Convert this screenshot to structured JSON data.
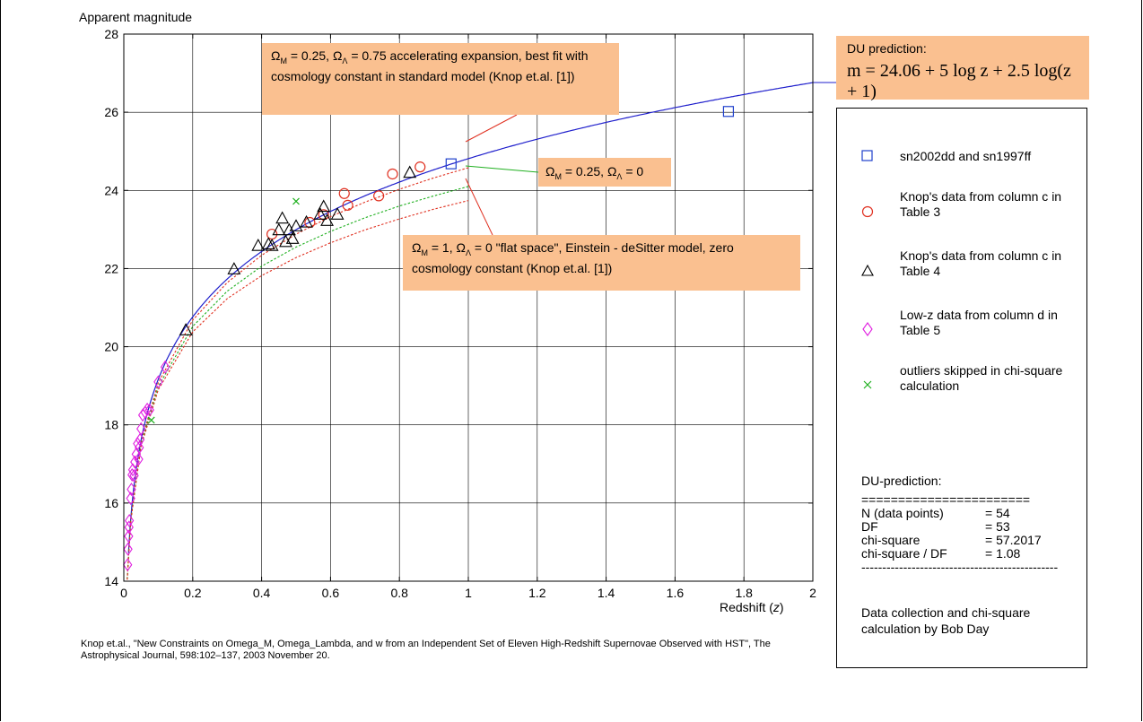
{
  "chart_data": {
    "type": "scatter",
    "xlabel_main": "Redshift",
    "xlabel_var": "z",
    "ylabel": "Apparent magnitude",
    "xlim": [
      0,
      2
    ],
    "ylim": [
      14,
      28
    ],
    "x_ticks": [
      "0",
      "0.2",
      "0.4",
      "0.6",
      "0.8",
      "1",
      "1.2",
      "1.4",
      "1.6",
      "1.8",
      "2"
    ],
    "y_ticks": [
      "14",
      "16",
      "18",
      "20",
      "22",
      "24",
      "26",
      "28"
    ],
    "grid": true,
    "curves": [
      {
        "name": "DU prediction",
        "color": "#1f1fcc",
        "style": "solid",
        "formula": "m = 24.06 + 5 log z + 2.5 log(z+1)"
      },
      {
        "name": "Omega_M = 0.25, Omega_Lambda = 0.75",
        "color": "#e03020",
        "style": "dotted",
        "x": [
          0.01,
          0.02,
          0.05,
          0.1,
          0.2,
          0.3,
          0.4,
          0.5,
          0.6,
          0.7,
          0.8,
          0.9,
          1.0
        ],
        "y": [
          14.05,
          15.55,
          17.55,
          19.08,
          20.68,
          21.64,
          22.34,
          22.88,
          23.33,
          23.7,
          24.03,
          24.32,
          24.58
        ]
      },
      {
        "name": "Omega_M = 0.25, Omega_Lambda = 0",
        "color": "#20b020",
        "style": "dotted",
        "x": [
          0.01,
          0.02,
          0.05,
          0.1,
          0.2,
          0.3,
          0.4,
          0.5,
          0.6,
          0.7,
          0.8,
          0.9,
          1.0
        ],
        "y": [
          14.05,
          15.54,
          17.5,
          18.98,
          20.52,
          21.42,
          22.06,
          22.55,
          22.95,
          23.3,
          23.6,
          23.86,
          24.1
        ]
      },
      {
        "name": "Omega_M = 1, Omega_Lambda = 0",
        "color": "#e03020",
        "style": "dotted",
        "x": [
          0.01,
          0.02,
          0.05,
          0.1,
          0.2,
          0.3,
          0.4,
          0.5,
          0.6,
          0.7,
          0.8,
          0.9,
          1.0
        ],
        "y": [
          14.04,
          15.53,
          17.45,
          18.9,
          20.38,
          21.23,
          21.82,
          22.28,
          22.66,
          22.99,
          23.27,
          23.52,
          23.74
        ]
      }
    ],
    "series": [
      {
        "name": "sn2002dd and sn1997ff",
        "marker": "square",
        "color": "#1f3fcc",
        "x": [
          0.95,
          1.755
        ],
        "y": [
          24.68,
          26.02
        ]
      },
      {
        "name": "Knop's data from column c in Table 3",
        "marker": "circle",
        "color": "#e03020",
        "x": [
          0.43,
          0.54,
          0.58,
          0.64,
          0.65,
          0.74,
          0.78,
          0.86
        ],
        "y": [
          22.88,
          23.18,
          23.38,
          23.92,
          23.62,
          23.86,
          24.42,
          24.6
        ]
      },
      {
        "name": "Knop's data from column c in Table 4",
        "marker": "triangle",
        "color": "#000000",
        "x": [
          0.18,
          0.32,
          0.39,
          0.42,
          0.43,
          0.45,
          0.46,
          0.47,
          0.48,
          0.49,
          0.5,
          0.53,
          0.57,
          0.58,
          0.59,
          0.62,
          0.83
        ],
        "y": [
          20.42,
          21.98,
          22.58,
          22.62,
          22.58,
          22.98,
          23.28,
          22.68,
          22.98,
          22.76,
          23.08,
          23.18,
          23.38,
          23.58,
          23.22,
          23.38,
          24.45
        ]
      },
      {
        "name": "Low-z data from column d in Table 5",
        "marker": "diamond",
        "color": "#e020e0",
        "x": [
          0.011,
          0.012,
          0.014,
          0.015,
          0.016,
          0.02,
          0.022,
          0.024,
          0.026,
          0.03,
          0.032,
          0.036,
          0.04,
          0.043,
          0.045,
          0.047,
          0.05,
          0.055,
          0.062,
          0.068,
          0.075,
          0.1,
          0.12
        ],
        "y": [
          14.42,
          14.82,
          15.15,
          15.38,
          15.55,
          16.12,
          16.35,
          16.72,
          16.85,
          16.7,
          17.05,
          17.25,
          17.52,
          17.12,
          17.42,
          17.62,
          17.9,
          18.25,
          18.32,
          18.4,
          18.38,
          19.1,
          19.48
        ]
      },
      {
        "name": "outliers skipped in chi-square calculation",
        "marker": "x",
        "color": "#20b020",
        "x": [
          0.08,
          0.5
        ],
        "y": [
          18.12,
          23.72
        ]
      }
    ]
  },
  "annotations": {
    "du_title": "DU prediction:",
    "du_formula": "m = 24.06 + 5 log z + 2.5 log(z + 1)",
    "note1": {
      "om": "Ω",
      "om_sub": "M",
      "eq1": " = 0.25, ",
      "ol": "Ω",
      "ol_sub": "Λ",
      "rest": "= 0.75 accelerating expansion, best fit with cosmology constant in standard model (Knop et.al. [1])"
    },
    "note2": {
      "om": "Ω",
      "om_sub": "M",
      "eq1": " = 0.25, ",
      "ol": "Ω",
      "ol_sub": "Λ",
      "rest": "= 0"
    },
    "note3": {
      "om": "Ω",
      "om_sub": "M",
      "eq1": " = 1, ",
      "ol": "Ω",
      "ol_sub": "Λ",
      "rest": "= 0 \"flat space\", Einstein - deSitter model, zero cosmology constant (Knop et.al. [1])"
    }
  },
  "legend": {
    "items": [
      {
        "label": "sn2002dd and sn1997ff"
      },
      {
        "label": "Knop's data from column c in Table 3"
      },
      {
        "label": "Knop's data from column c in Table 4"
      },
      {
        "label": "Low-z data from column d in Table 5"
      },
      {
        "label": "outliers skipped in chi-square calculation"
      }
    ],
    "stats_title": "DU-prediction:",
    "sep_top": "=======================",
    "rows": [
      {
        "k": "N (data points)",
        "v": "= 54"
      },
      {
        "k": "DF",
        "v": "= 53"
      },
      {
        "k": "chi-square",
        "v": "= 57.2017"
      },
      {
        "k": "chi-square / DF",
        "v": "= 1.08"
      }
    ],
    "sep_bottom": "-----------------------------------------------",
    "credit": "Data collection and chi-square calculation by Bob Day"
  },
  "reference": "Knop et.al., \"New Constraints on Omega_M, Omega_Lambda, and w from an Independent Set of Eleven High-Redshift Supernovae Observed with HST\", The Astrophysical Journal, 598:102–137, 2003 November 20."
}
